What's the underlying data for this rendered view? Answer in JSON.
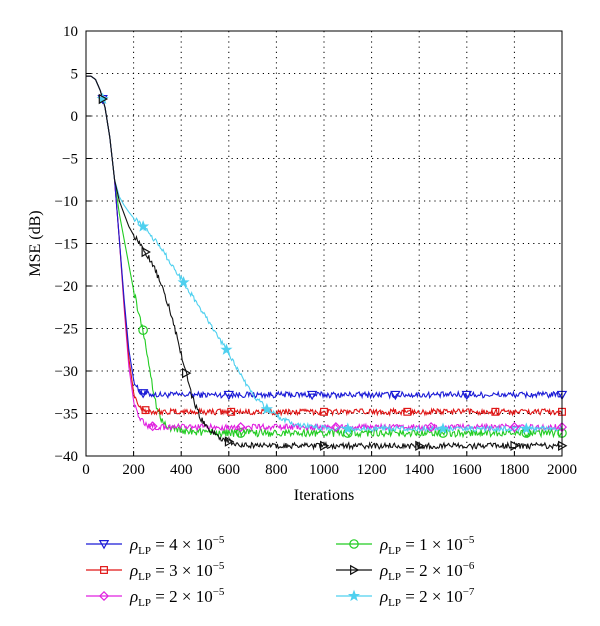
{
  "chart_data": {
    "type": "line",
    "xlabel": "Iterations",
    "ylabel": "MSE (dB)",
    "xlim": [
      0,
      2000
    ],
    "ylim": [
      -40,
      10
    ],
    "xticks": [
      0,
      200,
      400,
      600,
      800,
      1000,
      1200,
      1400,
      1600,
      1800,
      2000
    ],
    "yticks": [
      10,
      5,
      0,
      -5,
      -10,
      -15,
      -20,
      -25,
      -30,
      -35,
      -40
    ],
    "grid": true,
    "grid_style": "dotted",
    "legend_position": "below",
    "series": [
      {
        "name": "ρ_LP = 4 × 10^−5",
        "legend_main": "ρ",
        "legend_sub": "LP",
        "legend_mid": " = 4 × 10",
        "legend_sup": "−5",
        "color": "#1a1ad6",
        "marker": "triangle-down",
        "x": [
          0,
          20,
          40,
          60,
          80,
          100,
          120,
          140,
          160,
          180,
          200,
          220,
          240,
          260,
          300,
          400,
          600,
          800,
          1000,
          1200,
          1400,
          1600,
          1800,
          2000
        ],
        "y": [
          4.7,
          4.7,
          4.3,
          3.0,
          1.0,
          -2.5,
          -7.5,
          -14.5,
          -21.5,
          -27.5,
          -31.0,
          -32.3,
          -32.6,
          -32.7,
          -32.8,
          -32.8,
          -32.8,
          -32.8,
          -32.8,
          -32.8,
          -32.8,
          -32.8,
          -32.8,
          -32.8
        ],
        "noise": 0.35,
        "marker_x": [
          70,
          240,
          600,
          950,
          1300,
          1600,
          2000
        ]
      },
      {
        "name": "ρ_LP = 3 × 10^−5",
        "legend_main": "ρ",
        "legend_sub": "LP",
        "legend_mid": " = 3 × 10",
        "legend_sup": "−5",
        "color": "#e01616",
        "marker": "square",
        "x": [
          0,
          20,
          40,
          60,
          80,
          100,
          120,
          140,
          160,
          180,
          200,
          220,
          240,
          260,
          300,
          400,
          600,
          800,
          1000,
          1200,
          1400,
          1600,
          1800,
          2000
        ],
        "y": [
          4.7,
          4.7,
          4.3,
          3.0,
          1.0,
          -2.5,
          -7.5,
          -14.5,
          -22.0,
          -28.5,
          -32.5,
          -34.0,
          -34.5,
          -34.7,
          -34.8,
          -34.8,
          -34.8,
          -34.8,
          -34.8,
          -34.8,
          -34.8,
          -34.8,
          -34.8,
          -34.8
        ],
        "noise": 0.35,
        "marker_x": [
          250,
          610,
          1000,
          1350,
          1720,
          2000
        ]
      },
      {
        "name": "ρ_LP = 2 × 10^−5",
        "legend_main": "ρ",
        "legend_sub": "LP",
        "legend_mid": " = 2 × 10",
        "legend_sup": "−5",
        "color": "#e020e0",
        "marker": "diamond",
        "x": [
          0,
          20,
          40,
          60,
          80,
          100,
          120,
          140,
          160,
          180,
          200,
          220,
          240,
          260,
          300,
          400,
          600,
          800,
          1000,
          1200,
          1400,
          1600,
          1800,
          2000
        ],
        "y": [
          4.7,
          4.7,
          4.3,
          3.0,
          1.0,
          -2.5,
          -7.5,
          -14.5,
          -22.5,
          -29.5,
          -33.5,
          -35.3,
          -36.0,
          -36.4,
          -36.6,
          -36.6,
          -36.6,
          -36.6,
          -36.6,
          -36.6,
          -36.6,
          -36.6,
          -36.6,
          -36.6
        ],
        "noise": 0.35,
        "marker_x": [
          280,
          650,
          1050,
          1450,
          1800,
          2000
        ]
      },
      {
        "name": "ρ_LP = 1 × 10^−5",
        "legend_main": "ρ",
        "legend_sub": "LP",
        "legend_mid": " = 1 × 10",
        "legend_sup": "−5",
        "color": "#22cc22",
        "marker": "circle",
        "x": [
          0,
          20,
          40,
          60,
          80,
          100,
          120,
          140,
          160,
          180,
          200,
          220,
          240,
          260,
          280,
          300,
          320,
          350,
          400,
          500,
          600,
          800,
          1000,
          1200,
          1400,
          1600,
          1800,
          2000
        ],
        "y": [
          4.7,
          4.7,
          4.3,
          3.0,
          1.0,
          -2.5,
          -7.5,
          -11.5,
          -14.5,
          -17.5,
          -20.5,
          -23.0,
          -25.2,
          -28.5,
          -32.0,
          -34.5,
          -35.8,
          -36.6,
          -37.0,
          -37.2,
          -37.3,
          -37.3,
          -37.3,
          -37.3,
          -37.3,
          -37.3,
          -37.3,
          -37.3
        ],
        "noise": 0.45,
        "marker_x": [
          240,
          650,
          1100,
          1500,
          1850,
          2000
        ]
      },
      {
        "name": "ρ_LP = 2 × 10^−6",
        "legend_main": "ρ",
        "legend_sub": "LP",
        "legend_mid": " = 2 × 10",
        "legend_sup": "−6",
        "color": "#111111",
        "marker": "triangle-right",
        "x": [
          0,
          20,
          40,
          60,
          80,
          100,
          120,
          140,
          160,
          180,
          200,
          240,
          280,
          320,
          360,
          400,
          440,
          480,
          520,
          560,
          600,
          650,
          700,
          800,
          1000,
          1200,
          1400,
          1600,
          1800,
          2000
        ],
        "y": [
          4.7,
          4.7,
          4.3,
          3.0,
          1.0,
          -2.5,
          -7.5,
          -10.0,
          -11.5,
          -13.0,
          -14.0,
          -15.5,
          -17.5,
          -20.0,
          -23.5,
          -28.0,
          -32.5,
          -35.5,
          -37.0,
          -37.8,
          -38.3,
          -38.6,
          -38.7,
          -38.8,
          -38.8,
          -38.8,
          -38.8,
          -38.8,
          -38.8,
          -38.8
        ],
        "noise": 0.35,
        "marker_x": [
          70,
          250,
          420,
          600,
          1000,
          1400,
          1800,
          2000
        ]
      },
      {
        "name": "ρ_LP = 2 × 10^−7",
        "legend_main": "ρ",
        "legend_sub": "LP",
        "legend_mid": " = 2 × 10",
        "legend_sup": "−7",
        "color": "#4fd0ef",
        "marker": "star",
        "x": [
          0,
          20,
          40,
          60,
          80,
          100,
          120,
          140,
          160,
          180,
          200,
          240,
          300,
          350,
          420,
          500,
          590,
          650,
          700,
          760,
          820,
          880,
          950,
          1050,
          1200,
          1400,
          1600,
          1800,
          2000
        ],
        "y": [
          4.7,
          4.7,
          4.3,
          3.0,
          1.0,
          -2.5,
          -7.5,
          -9.5,
          -10.5,
          -11.3,
          -12.0,
          -13.0,
          -15.0,
          -17.0,
          -20.0,
          -23.5,
          -27.5,
          -30.5,
          -32.7,
          -34.5,
          -35.6,
          -36.3,
          -36.6,
          -36.8,
          -36.8,
          -36.8,
          -36.8,
          -36.8,
          -36.8
        ],
        "noise": 0.3,
        "marker_x": [
          70,
          240,
          410,
          590,
          760,
          1100,
          1500,
          1850
        ]
      }
    ]
  }
}
